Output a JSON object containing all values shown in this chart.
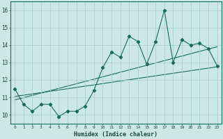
{
  "xlabel": "Humidex (Indice chaleur)",
  "xlim": [
    -0.5,
    23.5
  ],
  "ylim": [
    9.5,
    16.5
  ],
  "xticks": [
    0,
    1,
    2,
    3,
    4,
    5,
    6,
    7,
    8,
    9,
    10,
    11,
    12,
    13,
    14,
    15,
    16,
    17,
    18,
    19,
    20,
    21,
    22,
    23
  ],
  "yticks": [
    10,
    11,
    12,
    13,
    14,
    15,
    16
  ],
  "bg_color": "#cce8e4",
  "grid_color": "#aacfcb",
  "line_color": "#1a6b5e",
  "main_line_x": [
    0,
    1,
    2,
    3,
    4,
    5,
    6,
    7,
    8,
    9,
    10,
    11,
    12,
    13,
    14,
    15,
    16,
    17,
    18,
    19,
    20,
    21,
    22,
    23
  ],
  "main_line_y": [
    11.5,
    10.6,
    10.2,
    10.6,
    10.6,
    9.9,
    10.2,
    10.2,
    10.5,
    11.4,
    12.7,
    13.6,
    13.3,
    14.5,
    14.2,
    12.9,
    14.2,
    16.0,
    13.0,
    14.3,
    14.0,
    14.1,
    13.8,
    12.8
  ],
  "reg_line1_x": [
    0,
    23
  ],
  "reg_line1_y": [
    10.85,
    13.9
  ],
  "reg_line2_x": [
    0,
    23
  ],
  "reg_line2_y": [
    11.05,
    12.75
  ]
}
